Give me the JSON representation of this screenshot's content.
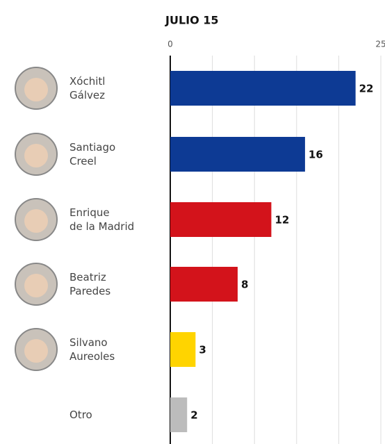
{
  "chart_data": {
    "type": "bar",
    "orientation": "horizontal",
    "subtitle": "JULIO 15",
    "categories": [
      "Xóchitl\nGálvez",
      "Santiago\nCreel",
      "Enrique\nde la Madrid",
      "Beatriz\nParedes",
      "Silvano\nAureoles",
      "Otro"
    ],
    "values": [
      22,
      16,
      12,
      8,
      3,
      2
    ],
    "colors": [
      "#0d3a94",
      "#0d3a94",
      "#d3131b",
      "#d3131b",
      "#ffd400",
      "#bcbcbc"
    ],
    "xlim": [
      0,
      25
    ],
    "xticks": [
      0,
      25
    ],
    "minor_xticks": [
      5,
      10,
      15,
      20
    ],
    "grid": true
  }
}
